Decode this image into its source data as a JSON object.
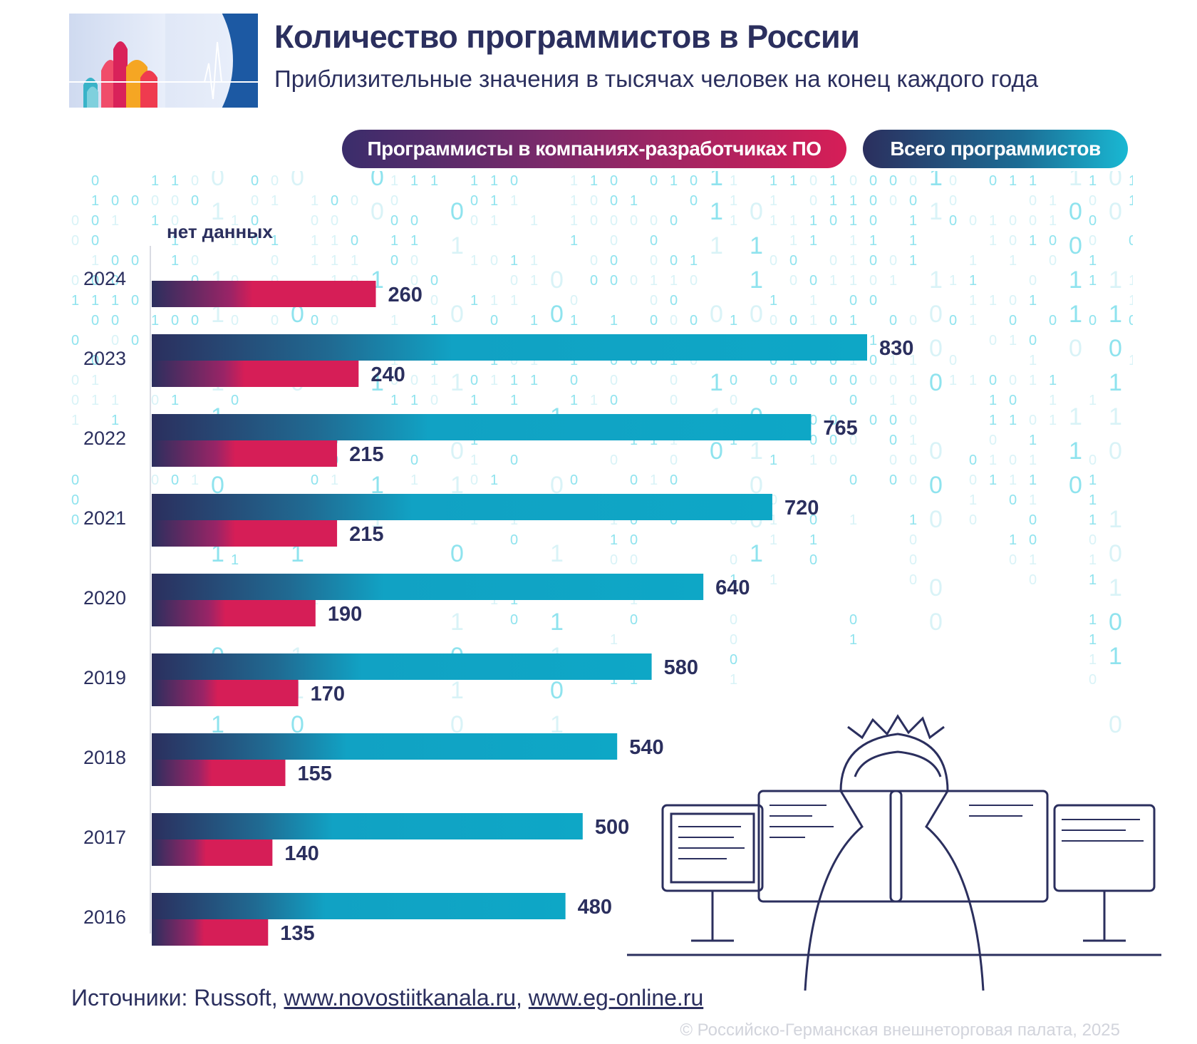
{
  "header": {
    "title": "Количество программистов в России",
    "subtitle": "Приблизительные значения в тысячах человек на конец каждого года"
  },
  "legend": {
    "companies_label": "Программисты в компаниях-разработчиках ПО",
    "total_label": "Всего программистов"
  },
  "no_data_label": "нет данных",
  "colors": {
    "navy": "#2b2f5e",
    "teal": "#12a5c6",
    "pink": "#d61e57"
  },
  "chart_data": {
    "type": "bar",
    "orientation": "horizontal",
    "categories": [
      "2024",
      "2023",
      "2022",
      "2021",
      "2020",
      "2019",
      "2018",
      "2017",
      "2016"
    ],
    "series": [
      {
        "name": "Всего программистов",
        "values": [
          null,
          830,
          765,
          720,
          640,
          580,
          540,
          500,
          480
        ]
      },
      {
        "name": "Программисты в компаниях-разработчиках ПО",
        "values": [
          260,
          240,
          215,
          215,
          190,
          170,
          155,
          140,
          135
        ]
      }
    ],
    "xlim": [
      0,
      830
    ],
    "grid": false,
    "legend_position": "top-right"
  },
  "footer": {
    "sources_prefix": "Источники: Russoft, ",
    "source_link_1": "www.novostiitkanala.ru",
    "separator": ", ",
    "source_link_2": "www.eg-online.ru",
    "copyright": "© Российско-Германская внешнеторговая палата, 2025"
  }
}
